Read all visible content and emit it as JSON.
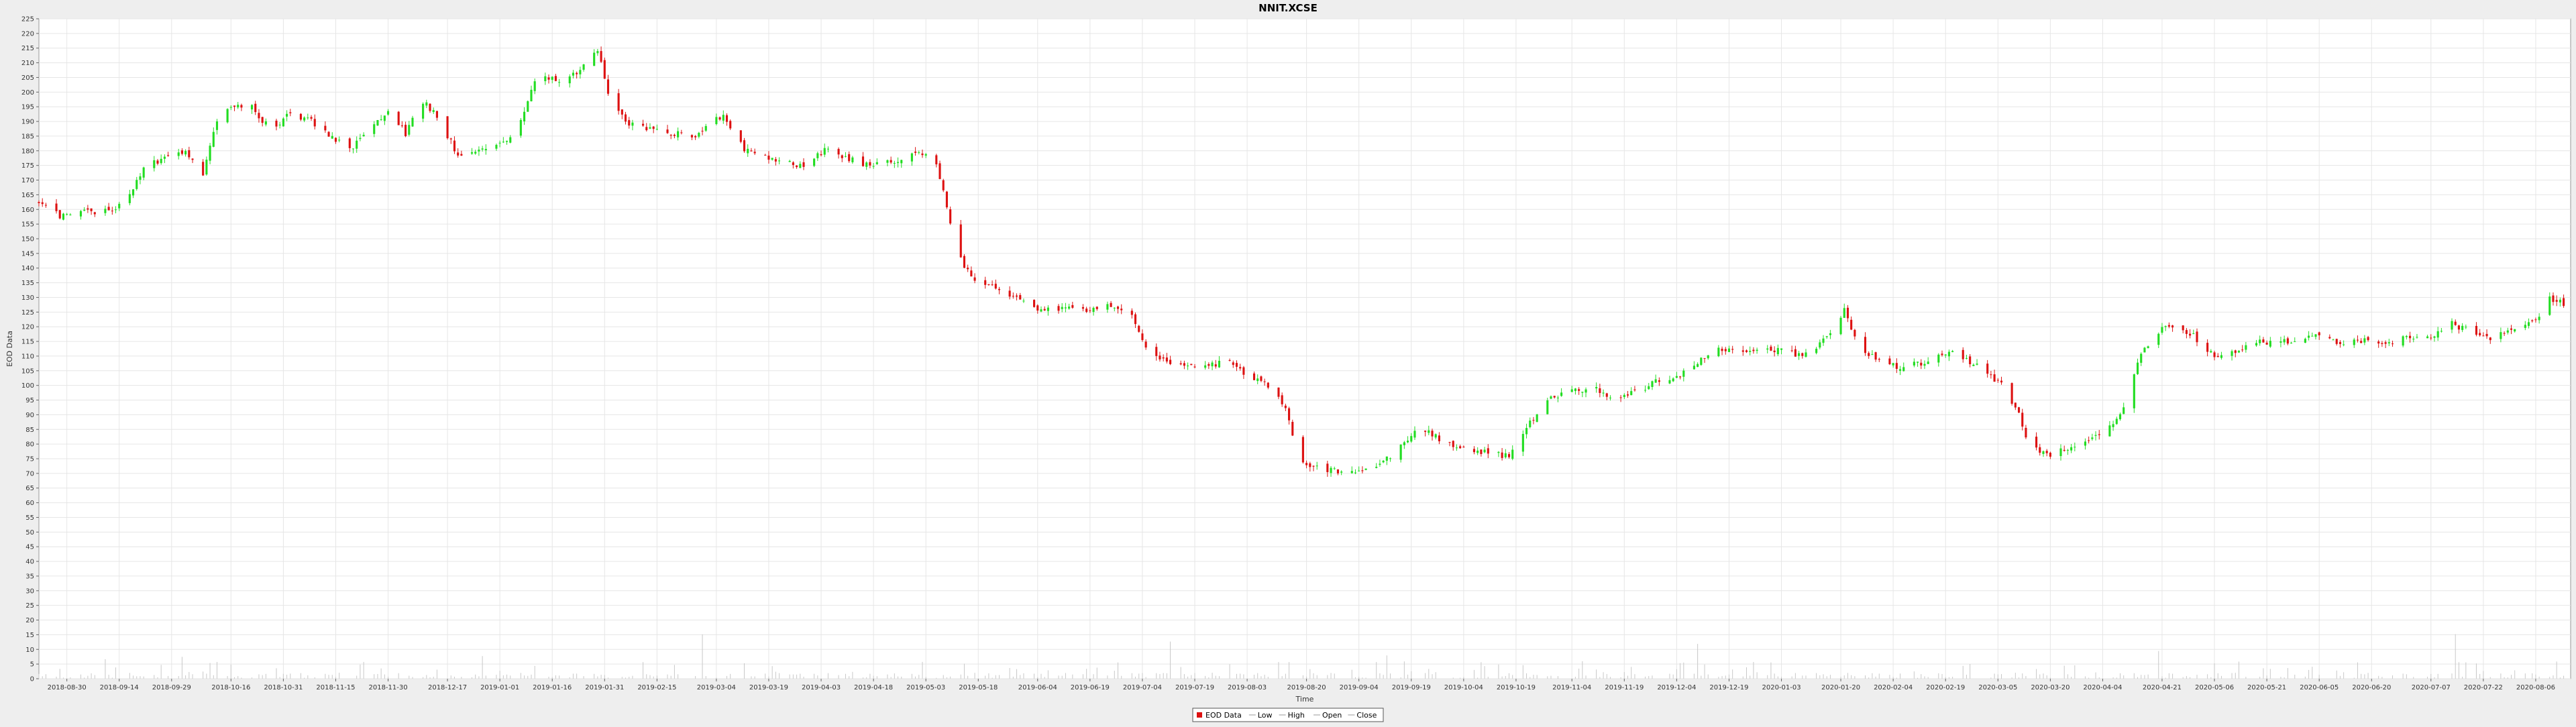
{
  "chart_data": {
    "type": "candlestick",
    "title": "NNIT.XCSE",
    "xlabel": "Time",
    "ylabel": "EOD Data",
    "ylim": [
      0,
      225
    ],
    "y_tick_step": 5,
    "grid": true,
    "legend_placement": "bottom-center",
    "legend": [
      "EOD Data",
      "Low",
      "High",
      "Open",
      "Close"
    ],
    "x_tick_labels": [
      "2018-08-30",
      "2018-09-14",
      "2018-09-29",
      "2018-10-16",
      "2018-10-31",
      "2018-11-15",
      "2018-11-30",
      "2018-12-17",
      "2019-01-01",
      "2019-01-16",
      "2019-01-31",
      "2019-02-15",
      "2019-03-04",
      "2019-03-19",
      "2019-04-03",
      "2019-04-18",
      "2019-05-03",
      "2019-05-18",
      "2019-06-04",
      "2019-06-19",
      "2019-07-04",
      "2019-07-19",
      "2019-08-03",
      "2019-08-20",
      "2019-09-04",
      "2019-09-19",
      "2019-10-04",
      "2019-10-19",
      "2019-11-04",
      "2019-11-19",
      "2019-12-04",
      "2019-12-19",
      "2020-01-03",
      "2020-01-20",
      "2020-02-04",
      "2020-02-19",
      "2020-03-05",
      "2020-03-20",
      "2020-04-04",
      "2020-04-21",
      "2020-05-06",
      "2020-05-21",
      "2020-06-05",
      "2020-06-20",
      "2020-07-07",
      "2020-07-22",
      "2020-08-06"
    ],
    "close_trend": [
      [
        "2018-08-22",
        162
      ],
      [
        "2018-08-28",
        158
      ],
      [
        "2018-09-05",
        159
      ],
      [
        "2018-09-12",
        160
      ],
      [
        "2018-09-17",
        165
      ],
      [
        "2018-09-21",
        174
      ],
      [
        "2018-09-27",
        178
      ],
      [
        "2018-10-03",
        180
      ],
      [
        "2018-10-08",
        172
      ],
      [
        "2018-10-12",
        190
      ],
      [
        "2018-10-17",
        196
      ],
      [
        "2018-10-22",
        195
      ],
      [
        "2018-10-28",
        186
      ],
      [
        "2018-11-02",
        193
      ],
      [
        "2018-11-08",
        190
      ],
      [
        "2018-11-14",
        185
      ],
      [
        "2018-11-19",
        180
      ],
      [
        "2018-11-25",
        188
      ],
      [
        "2018-11-30",
        193
      ],
      [
        "2018-12-05",
        186
      ],
      [
        "2018-12-10",
        197
      ],
      [
        "2018-12-15",
        190
      ],
      [
        "2018-12-20",
        178
      ],
      [
        "2018-12-28",
        180
      ],
      [
        "2019-01-05",
        185
      ],
      [
        "2019-01-12",
        206
      ],
      [
        "2019-01-18",
        204
      ],
      [
        "2019-01-24",
        207
      ],
      [
        "2019-01-29",
        214
      ],
      [
        "2019-02-02",
        196
      ],
      [
        "2019-02-06",
        190
      ],
      [
        "2019-02-12",
        188
      ],
      [
        "2019-02-20",
        186
      ],
      [
        "2019-02-26",
        184
      ],
      [
        "2019-03-02",
        190
      ],
      [
        "2019-03-06",
        192
      ],
      [
        "2019-03-12",
        180
      ],
      [
        "2019-03-18",
        178
      ],
      [
        "2019-03-24",
        176
      ],
      [
        "2019-03-30",
        174
      ],
      [
        "2019-04-04",
        181
      ],
      [
        "2019-04-10",
        178
      ],
      [
        "2019-04-16",
        175
      ],
      [
        "2019-04-22",
        176
      ],
      [
        "2019-04-28",
        178
      ],
      [
        "2019-05-05",
        179
      ],
      [
        "2019-05-08",
        167
      ],
      [
        "2019-05-12",
        145
      ],
      [
        "2019-05-16",
        137
      ],
      [
        "2019-05-22",
        134
      ],
      [
        "2019-05-29",
        130
      ],
      [
        "2019-06-04",
        126
      ],
      [
        "2019-06-10",
        126
      ],
      [
        "2019-06-18",
        126
      ],
      [
        "2019-06-26",
        127
      ],
      [
        "2019-07-01",
        124
      ],
      [
        "2019-07-06",
        110
      ],
      [
        "2019-07-12",
        108
      ],
      [
        "2019-07-18",
        106
      ],
      [
        "2019-07-24",
        107
      ],
      [
        "2019-07-30",
        108
      ],
      [
        "2019-08-04",
        102
      ],
      [
        "2019-08-10",
        100
      ],
      [
        "2019-08-14",
        92
      ],
      [
        "2019-08-18",
        75
      ],
      [
        "2019-08-22",
        72
      ],
      [
        "2019-08-28",
        71
      ],
      [
        "2019-09-03",
        70
      ],
      [
        "2019-09-10",
        73
      ],
      [
        "2019-09-16",
        79
      ],
      [
        "2019-09-21",
        86
      ],
      [
        "2019-09-27",
        82
      ],
      [
        "2019-10-04",
        78
      ],
      [
        "2019-10-10",
        77
      ],
      [
        "2019-10-17",
        76
      ],
      [
        "2019-10-22",
        86
      ],
      [
        "2019-10-28",
        95
      ],
      [
        "2019-11-04",
        98
      ],
      [
        "2019-11-10",
        99
      ],
      [
        "2019-11-16",
        96
      ],
      [
        "2019-11-22",
        98
      ],
      [
        "2019-11-28",
        101
      ],
      [
        "2019-12-04",
        103
      ],
      [
        "2019-12-10",
        108
      ],
      [
        "2019-12-16",
        113
      ],
      [
        "2019-12-20",
        112
      ],
      [
        "2020-01-02",
        112
      ],
      [
        "2020-01-09",
        110
      ],
      [
        "2020-01-15",
        115
      ],
      [
        "2020-01-21",
        126
      ],
      [
        "2020-01-25",
        113
      ],
      [
        "2020-02-01",
        108
      ],
      [
        "2020-02-07",
        106
      ],
      [
        "2020-02-13",
        108
      ],
      [
        "2020-02-20",
        112
      ],
      [
        "2020-02-26",
        108
      ],
      [
        "2020-03-02",
        104
      ],
      [
        "2020-03-06",
        100
      ],
      [
        "2020-03-10",
        93
      ],
      [
        "2020-03-14",
        80
      ],
      [
        "2020-03-19",
        76
      ],
      [
        "2020-03-23",
        78
      ],
      [
        "2020-03-27",
        80
      ],
      [
        "2020-04-01",
        82
      ],
      [
        "2020-04-06",
        86
      ],
      [
        "2020-04-10",
        93
      ],
      [
        "2020-04-14",
        108
      ],
      [
        "2020-04-19",
        118
      ],
      [
        "2020-04-24",
        120
      ],
      [
        "2020-04-30",
        117
      ],
      [
        "2020-05-06",
        110
      ],
      [
        "2020-05-12",
        112
      ],
      [
        "2020-05-20",
        115
      ],
      [
        "2020-05-28",
        115
      ],
      [
        "2020-06-04",
        118
      ],
      [
        "2020-06-10",
        115
      ],
      [
        "2020-06-18",
        115
      ],
      [
        "2020-06-24",
        114
      ],
      [
        "2020-06-30",
        116
      ],
      [
        "2020-07-07",
        117
      ],
      [
        "2020-07-13",
        121
      ],
      [
        "2020-07-19",
        118
      ],
      [
        "2020-07-25",
        116
      ],
      [
        "2020-08-01",
        120
      ],
      [
        "2020-08-06",
        122
      ],
      [
        "2020-08-10",
        130
      ],
      [
        "2020-08-14",
        128
      ]
    ]
  }
}
